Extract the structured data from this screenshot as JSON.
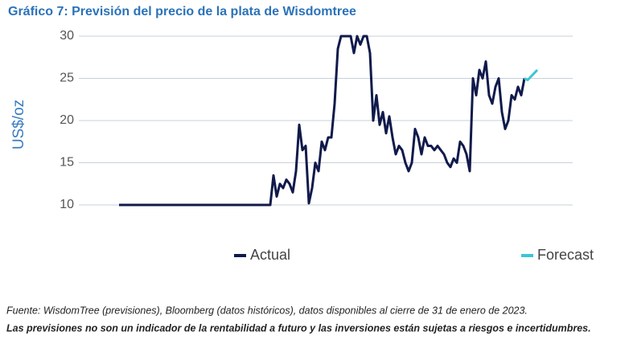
{
  "chart_data": {
    "type": "line",
    "title": "Gráfico 7: Previsión del precio de la plata de Wisdomtree",
    "y_label": "US$/oz",
    "categories": [
      null,
      null,
      null,
      null,
      null,
      null,
      null,
      null,
      null,
      null,
      null,
      null,
      null,
      null,
      null,
      null,
      null,
      null,
      null,
      null,
      null,
      null,
      null,
      null,
      null,
      null,
      null,
      null,
      null,
      null,
      null,
      null,
      null,
      null,
      null,
      null,
      null,
      null,
      null,
      null,
      null,
      null,
      null,
      null,
      null,
      null,
      null,
      null,
      null,
      null,
      null,
      null,
      null,
      null,
      null,
      null,
      null,
      null,
      null,
      null,
      null,
      null,
      null,
      null,
      null,
      null,
      null,
      null,
      null,
      null,
      null,
      null,
      null,
      null,
      null,
      null,
      null,
      null,
      null,
      null,
      null,
      null,
      null,
      null,
      null,
      null,
      null,
      null,
      null,
      null,
      null,
      null,
      null,
      null,
      null,
      null,
      null,
      null,
      null,
      null,
      null,
      null,
      null,
      null,
      null,
      null,
      null,
      null,
      null,
      null,
      null,
      null,
      null,
      null,
      null,
      null,
      null,
      null,
      null,
      null,
      null,
      null,
      null,
      null,
      null,
      null,
      null,
      null,
      null,
      null,
      null
    ],
    "series": [
      {
        "name": "Actual",
        "color": "#101a4b",
        "values": [
          10,
          10,
          10,
          10,
          10,
          10,
          10,
          10,
          10,
          10,
          10,
          10,
          10,
          10,
          10,
          10,
          10,
          10,
          10,
          10,
          10,
          10,
          10,
          10,
          10,
          10,
          10,
          10,
          10,
          10,
          10,
          10,
          10,
          10,
          10,
          10,
          10,
          10,
          10,
          10,
          10,
          10,
          10,
          10,
          10,
          10,
          10,
          10,
          13.5,
          11,
          12.5,
          12,
          13,
          12.5,
          11.5,
          14,
          19.5,
          16.5,
          17,
          10.2,
          12,
          15,
          14,
          17.5,
          16.5,
          18,
          18,
          22,
          28.5,
          30,
          30,
          30,
          30,
          28,
          30,
          29,
          30,
          30,
          28,
          20,
          23,
          19.5,
          21,
          18.5,
          20.5,
          18,
          16,
          17,
          16.5,
          15,
          14,
          15,
          19,
          18,
          16,
          18,
          17,
          17,
          16.5,
          17,
          16.5,
          16,
          15,
          14.5,
          15.5,
          15,
          17.5,
          17,
          16,
          14,
          25,
          23,
          26,
          25,
          27,
          23,
          22,
          24,
          25,
          21,
          19,
          20,
          23,
          22.5,
          24,
          23,
          25,
          null,
          null,
          null,
          null
        ]
      },
      {
        "name": "Forecast",
        "color": "#3cc6d6",
        "values": [
          null,
          null,
          null,
          null,
          null,
          null,
          null,
          null,
          null,
          null,
          null,
          null,
          null,
          null,
          null,
          null,
          null,
          null,
          null,
          null,
          null,
          null,
          null,
          null,
          null,
          null,
          null,
          null,
          null,
          null,
          null,
          null,
          null,
          null,
          null,
          null,
          null,
          null,
          null,
          null,
          null,
          null,
          null,
          null,
          null,
          null,
          null,
          null,
          null,
          null,
          null,
          null,
          null,
          null,
          null,
          null,
          null,
          null,
          null,
          null,
          null,
          null,
          null,
          null,
          null,
          null,
          null,
          null,
          null,
          null,
          null,
          null,
          null,
          null,
          null,
          null,
          null,
          null,
          null,
          null,
          null,
          null,
          null,
          null,
          null,
          null,
          null,
          null,
          null,
          null,
          null,
          null,
          null,
          null,
          null,
          null,
          null,
          null,
          null,
          null,
          null,
          null,
          null,
          null,
          null,
          null,
          null,
          null,
          null,
          null,
          null,
          null,
          null,
          null,
          null,
          null,
          null,
          null,
          null,
          null,
          null,
          null,
          null,
          null,
          null,
          null,
          25,
          24.8,
          25.2,
          25.6,
          26
        ]
      }
    ],
    "ylim": [
      10,
      30
    ],
    "yticks": [
      10,
      15,
      20,
      25,
      30
    ],
    "grid": true,
    "legend": "bottom",
    "source": "Fuente: WisdomTree (previsiones), Bloomberg (datos históricos), datos disponibles al cierre de 31 de enero de 2023.",
    "disclaimer": "Las previsiones no son un indicador de la rentabilidad a futuro y las inversiones están sujetas a riesgos e incertidumbres."
  }
}
